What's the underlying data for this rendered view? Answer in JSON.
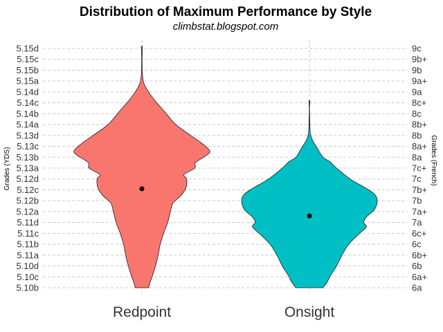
{
  "chart_data": {
    "type": "violin",
    "title": "Distribution of Maximum Performance by Style",
    "subtitle": "climbstat.blogspot.com",
    "ylabel_left": "Grades (YDS)",
    "ylabel_right": "Grades (French)",
    "categories": [
      "Redpoint",
      "Onsight"
    ],
    "grades_yds": [
      "5.10b",
      "5.10c",
      "5.10d",
      "5.11a",
      "5.11b",
      "5.11c",
      "5.11d",
      "5.12a",
      "5.12b",
      "5.12c",
      "5.12d",
      "5.13a",
      "5.13b",
      "5.13c",
      "5.13d",
      "5.14a",
      "5.14b",
      "5.14c",
      "5.14d",
      "5.15a",
      "5.15b",
      "5.15c",
      "5.15d"
    ],
    "grades_french": [
      "6a",
      "6a+",
      "6b",
      "6b+",
      "6c",
      "6c+",
      "7a",
      "7a+",
      "7b",
      "7b+",
      "7c",
      "7c+",
      "8a",
      "8a+",
      "8b",
      "8b+",
      "8c",
      "8c+",
      "9a",
      "9a+",
      "9b",
      "9b+",
      "9c"
    ],
    "grid": true,
    "series": [
      {
        "name": "Redpoint",
        "color": "#F8766D",
        "median_index": 9.1,
        "min_index": 0,
        "max_index": 22.2,
        "density_profile": [
          [
            0,
            0.1
          ],
          [
            0.5,
            0.12
          ],
          [
            1,
            0.15
          ],
          [
            2,
            0.2
          ],
          [
            3,
            0.24
          ],
          [
            4,
            0.27
          ],
          [
            5,
            0.32
          ],
          [
            6,
            0.38
          ],
          [
            7,
            0.42
          ],
          [
            7.8,
            0.46
          ],
          [
            8.5,
            0.58
          ],
          [
            9.2,
            0.65
          ],
          [
            10,
            0.66
          ],
          [
            10.4,
            0.62
          ],
          [
            11,
            0.78
          ],
          [
            11.5,
            0.79
          ],
          [
            12.2,
            0.96
          ],
          [
            12.6,
            1.0
          ],
          [
            13.2,
            0.9
          ],
          [
            14,
            0.72
          ],
          [
            15,
            0.5
          ],
          [
            16,
            0.36
          ],
          [
            17,
            0.22
          ],
          [
            17.8,
            0.12
          ],
          [
            18.5,
            0.05
          ],
          [
            19,
            0.02
          ],
          [
            19.5,
            0.01
          ],
          [
            20,
            0.005
          ],
          [
            21,
            0.003
          ],
          [
            22.2,
            0.0
          ]
        ]
      },
      {
        "name": "Onsight",
        "color": "#00BFC4",
        "median_index": 6.6,
        "min_index": 0,
        "max_index": 17.2,
        "density_profile": [
          [
            0,
            0.2
          ],
          [
            0.5,
            0.26
          ],
          [
            1,
            0.3
          ],
          [
            1.5,
            0.35
          ],
          [
            2,
            0.4
          ],
          [
            3,
            0.48
          ],
          [
            4,
            0.58
          ],
          [
            5,
            0.74
          ],
          [
            5.6,
            0.84
          ],
          [
            6,
            0.8
          ],
          [
            6.5,
            0.84
          ],
          [
            7.2,
            0.96
          ],
          [
            8,
            1.0
          ],
          [
            8.6,
            0.96
          ],
          [
            9.2,
            0.82
          ],
          [
            10,
            0.6
          ],
          [
            11,
            0.4
          ],
          [
            11.6,
            0.3
          ],
          [
            12,
            0.2
          ],
          [
            13,
            0.1
          ],
          [
            13.5,
            0.05
          ],
          [
            14,
            0.02
          ],
          [
            14.5,
            0.01
          ],
          [
            15.5,
            0.005
          ],
          [
            16.5,
            0.002
          ],
          [
            17.2,
            0.0
          ]
        ]
      }
    ]
  }
}
